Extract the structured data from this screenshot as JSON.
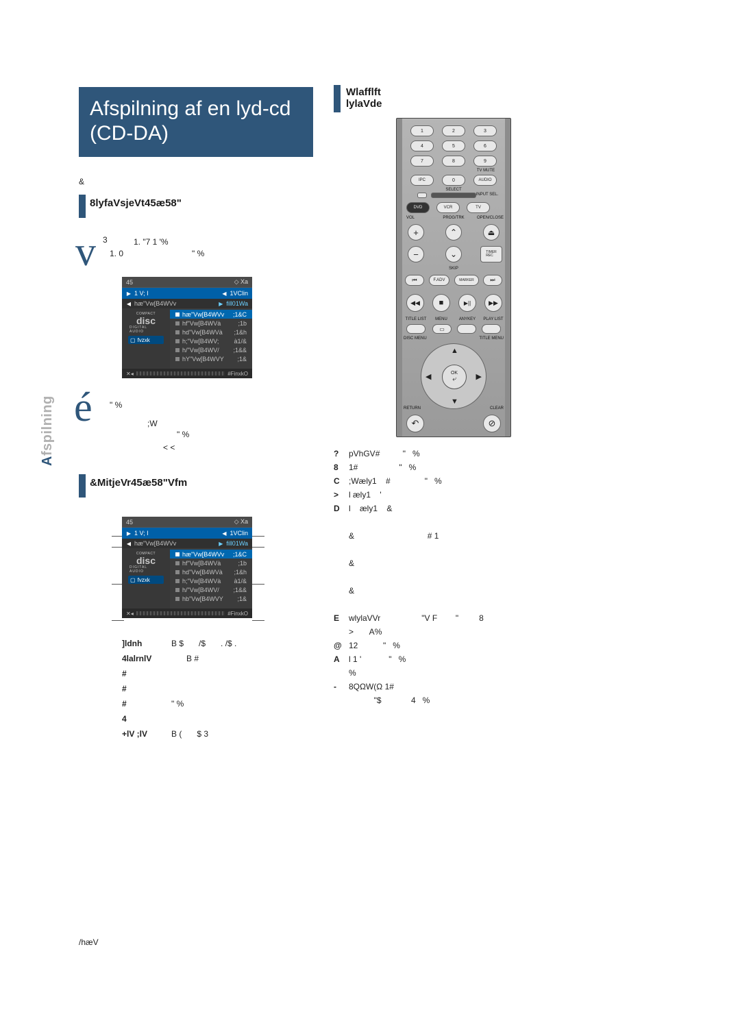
{
  "page": {
    "title_line1": "Afspilning af en lyd-cd",
    "title_line2": "(CD-DA)",
    "side_tab_prefix": "A",
    "side_tab_rest": "fspilning",
    "footer": "/hæV"
  },
  "section1": {
    "bar_color": "#2f567a",
    "heading": "8lyfaVsjeVt45æ58\"",
    "step1_body_l1": "1. \"7 1 '%",
    "step1_body_l2": "1. 0",
    "step1_body_l3": "\"   %",
    "step1_sup": "3",
    "step2_body_l1": "\"  %",
    "step2_body_l2": ";W",
    "step2_body_l3": "\"   %",
    "step2_body_l4": "<   <",
    "step1_glyph": "v",
    "step2_glyph": "é"
  },
  "section2": {
    "bar_color": "#2f567a",
    "heading": "&MitjeVr45æ58\"Vfm"
  },
  "section3": {
    "bar_color": "#2f567a",
    "heading_l1": "Wlafflft",
    "heading_l2": "lylaVde"
  },
  "panel1": {
    "top_left": "45",
    "top_right": "◇ Xa",
    "header_left_icon": "▶",
    "header_left": "1 V; I",
    "header_right_icon": "◀",
    "header_right": "1VClin",
    "sub_left_icon": "◀",
    "sub_left": "hæ\"Vw[B4WVv",
    "sub_right_icon": "▶",
    "sub_right": "fill01Wa",
    "left_pill_icon": "▢",
    "left_pill_text": "fvzxk",
    "cd_top": "COMPACT",
    "cd_main": "disc",
    "cd_sub": "DIGITAL AUDIO",
    "tracks": [
      {
        "name": "hæ\"Vw[B4WVv",
        "time": ";1&C",
        "hl": true
      },
      {
        "name": "hf\"Vw[B4WVà",
        "time": ";1b",
        "hl": false
      },
      {
        "name": "hd\"Vw[B4WVà",
        "time": ";1&h",
        "hl": false
      },
      {
        "name": "h;\"Vw[B4WV;",
        "time": "à1/&",
        "hl": false
      },
      {
        "name": "h/\"Vw[B4WV/",
        "time": ";1&&",
        "hl": false
      },
      {
        "name": "hY\"Vw[B4WVY",
        "time": ";1&",
        "hl": false
      }
    ],
    "footer_icons_left": "✕◂",
    "footer_icons_right": "#FinxkO",
    "bg_color": "#444444",
    "header_color": "#0060a8"
  },
  "panel2": {
    "top_left": "45",
    "top_right": "◇ Xa",
    "header_left_icon": "▶",
    "header_left": "1 V; I",
    "header_right_icon": "◀",
    "header_right": "1VClin",
    "sub_left_icon": "◀",
    "sub_left": "hæ\"Vw[B4WVv",
    "sub_right_icon": "▶",
    "sub_right": "fill01Wa",
    "left_pill_icon": "▢",
    "left_pill_text": "fvzxk",
    "cd_top": "COMPACT",
    "cd_main": "disc",
    "cd_sub": "DIGITAL AUDIO",
    "tracks": [
      {
        "name": "hæ\"Vw[B4WVv",
        "time": ";1&C",
        "hl": true
      },
      {
        "name": "hf\"Vw[B4WVà",
        "time": ";1b",
        "hl": false
      },
      {
        "name": "hd\"Vw[B4WVà",
        "time": ";1&h",
        "hl": false
      },
      {
        "name": "h;\"Vw[B4WVà",
        "time": "à1/&",
        "hl": false
      },
      {
        "name": "h/\"Vw[B4WV/",
        "time": ";1&&",
        "hl": false
      },
      {
        "name": "hb\"Vw[B4WVY",
        "time": ";1&",
        "hl": false
      }
    ],
    "footer_icons_left": "✕◂",
    "footer_icons_right": "#FinxkO"
  },
  "left_list": {
    "rows": [
      {
        "n": "",
        "a": "]ldnh",
        "b": "B $",
        "c": "/$",
        "d": ". /$    ."
      },
      {
        "n": "",
        "a": "4lalrnlV",
        "b": "",
        "c": "B #",
        "d": ""
      },
      {
        "n": "",
        "a": "#",
        "b": "",
        "c": "",
        "d": ""
      },
      {
        "n": "",
        "a": "#",
        "b": "",
        "c": "",
        "d": ""
      },
      {
        "n": "",
        "a": "#",
        "b": "\"   %",
        "c": "",
        "d": ""
      },
      {
        "n": "",
        "a": "4",
        "b": "",
        "c": "",
        "d": ""
      },
      {
        "n": "",
        "a": "+lV ;lV",
        "b": "B (",
        "c": "$     3",
        "d": ""
      }
    ]
  },
  "right_list": {
    "rows": [
      {
        "n": "?",
        "t": "pVhGV#          \"   %"
      },
      {
        "n": "8",
        "t": "1#                  \"   %"
      },
      {
        "n": "C",
        "t": ";Wæly1    #               \"   %"
      },
      {
        "n": ">",
        "t": "l æly1    '"
      },
      {
        "n": "D",
        "t": "l    æly1    &"
      },
      {
        "n": "",
        "t": ""
      },
      {
        "n": "",
        "t": "&                                # 1"
      },
      {
        "n": "",
        "t": ""
      },
      {
        "n": "",
        "t": "&"
      },
      {
        "n": "",
        "t": ""
      },
      {
        "n": "",
        "t": "&"
      },
      {
        "n": "",
        "t": ""
      },
      {
        "n": "E",
        "t": "wlylaVVr                  \"V F        \"         8"
      },
      {
        "n": "",
        "t": ">       A%"
      },
      {
        "n": "@",
        "t": "12           \"   %"
      },
      {
        "n": "A",
        "t": "l 1 '            \"   %"
      },
      {
        "n": "",
        "t": "%"
      },
      {
        "n": "-",
        "t": "8QΩW(Ω 1#"
      },
      {
        "n": "",
        "t": "           \"$             4   %"
      }
    ]
  },
  "remote": {
    "numpad": [
      "1",
      "2",
      "3",
      "4",
      "5",
      "6",
      "7",
      "8",
      "9",
      "0"
    ],
    "ipc": "IPC",
    "tv_mute": "TV MUTE",
    "audio": "AUDIO",
    "select": "SELECT",
    "input_sel": "INPUT SEL.",
    "dvd": "DVD",
    "vcr": "VCR",
    "tv": "TV",
    "vol": "VOL",
    "progtrk": "PROG/TRK",
    "openclose": "OPEN/CLOSE",
    "skip": "SKIP",
    "timer_rec": "TIMER\nREC",
    "fadv": "F.ADV",
    "marker": "MARKER",
    "title_list": "TITLE LIST",
    "menu": "MENU",
    "anykey": "ANYKEY",
    "play_list": "PLAY LIST",
    "disc_menu": "DISC MENU",
    "title_menu": "TITLE MENU",
    "return": "RETURN",
    "clear": "CLEAR",
    "ok": "OK",
    "tick": "⤶",
    "plus": "+",
    "minus": "−",
    "up": "⌃",
    "down": "⌄",
    "eject": "⏏",
    "prev": "⏮",
    "next": "⏭",
    "rew": "◀◀",
    "stop": "■",
    "playpause": "▶||",
    "ff": "▶▶",
    "arrow_up": "▲",
    "arrow_down": "▼",
    "arrow_left": "◀",
    "arrow_right": "▶",
    "return_icon": "↶",
    "clear_icon": "⊘"
  },
  "colors": {
    "accent": "#2f567a",
    "panel_header": "#0060a8",
    "panel_bg": "#444444",
    "remote_bg": "#8c8c8c"
  }
}
